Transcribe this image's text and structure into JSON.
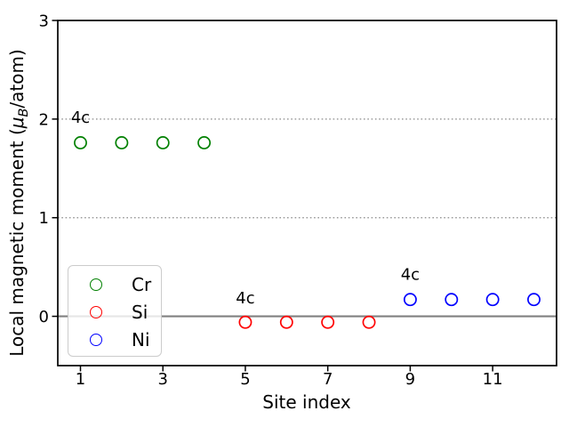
{
  "chart_data": {
    "type": "scatter",
    "title": "",
    "xlabel": "Site index",
    "ylabel": "Local magnetic moment (μB/atom)",
    "ylabel_parts": {
      "prefix": "Local magnetic moment (",
      "mu": "μ",
      "sub": "B",
      "suffix": "/atom)"
    },
    "xlim": [
      0.45,
      12.55
    ],
    "ylim": [
      -0.5,
      3.0
    ],
    "xticks": [
      1,
      3,
      5,
      7,
      9,
      11
    ],
    "yticks": [
      0,
      1,
      2,
      3
    ],
    "grid_y": [
      1,
      2
    ],
    "zero_line_y": 0,
    "series": [
      {
        "name": "Cr",
        "color": "#008000",
        "marker": "open-circle",
        "x": [
          1,
          2,
          3,
          4
        ],
        "y": [
          1.76,
          1.76,
          1.76,
          1.76
        ]
      },
      {
        "name": "Si",
        "color": "#ff0000",
        "marker": "open-circle",
        "x": [
          5,
          6,
          7,
          8
        ],
        "y": [
          -0.06,
          -0.06,
          -0.06,
          -0.06
        ]
      },
      {
        "name": "Ni",
        "color": "#0000ff",
        "marker": "open-circle",
        "x": [
          9,
          10,
          11,
          12
        ],
        "y": [
          0.17,
          0.17,
          0.17,
          0.17
        ]
      }
    ],
    "annotations": [
      {
        "text": "4c",
        "x": 1,
        "y": 2.02
      },
      {
        "text": "4c",
        "x": 5,
        "y": 0.19
      },
      {
        "text": "4c",
        "x": 9,
        "y": 0.43
      }
    ],
    "legend": {
      "position": "lower-left",
      "entries": [
        "Cr",
        "Si",
        "Ni"
      ]
    },
    "colors": {
      "grid": "#8a8a8a",
      "zero_line": "#808080",
      "spine": "#000000",
      "tick": "#000000",
      "text": "#000000"
    }
  }
}
